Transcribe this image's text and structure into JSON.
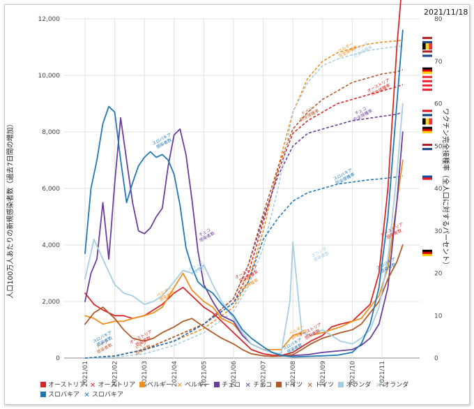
{
  "date_label": "2021/11/18",
  "chart_data": {
    "type": "line",
    "y_left": {
      "label": "人口100万人あたりの新規感染者数（過去7日間の増加）",
      "ticks": [
        "0",
        "2,000",
        "4,000",
        "6,000",
        "8,000",
        "10,000",
        "12,000"
      ],
      "ylim": [
        0,
        12000
      ]
    },
    "y_right": {
      "label": "ワクチン完全接種率（全人口に対するパーセント）",
      "ticks": [
        "0",
        "10",
        "20",
        "30",
        "40",
        "50",
        "60",
        "70",
        "80"
      ],
      "ylim": [
        0,
        80
      ]
    },
    "x_ticks": [
      "2021/01",
      "2021/02",
      "2021/03",
      "2021/04",
      "2021/05",
      "2021/06",
      "2021/07",
      "2021/08",
      "2021/09",
      "2021/10",
      "2021/11"
    ],
    "x_index_range": [
      0,
      10.9
    ],
    "grid": true,
    "legend_position": "bottom",
    "legend": [
      {
        "label": "オーストリア",
        "color": "#d62728",
        "marker": "square"
      },
      {
        "label": "オーストリア",
        "color": "#d62728",
        "marker": "cross"
      },
      {
        "label": "ベルギー",
        "color": "#f28e1c",
        "marker": "square"
      },
      {
        "label": "ベルギー",
        "color": "#f28e1c",
        "marker": "cross"
      },
      {
        "label": "チェコ",
        "color": "#6a3d9a",
        "marker": "square"
      },
      {
        "label": "チェコ",
        "color": "#6a3d9a",
        "marker": "cross"
      },
      {
        "label": "ドイツ",
        "color": "#b15928",
        "marker": "square"
      },
      {
        "label": "ドイツ",
        "color": "#b15928",
        "marker": "cross"
      },
      {
        "label": "オランダ",
        "color": "#a6cee3",
        "marker": "square"
      },
      {
        "label": "オランダ",
        "color": "#a6cee3",
        "marker": "cross"
      },
      {
        "label": "スロバキア",
        "color": "#1f78b4",
        "marker": "square"
      },
      {
        "label": "スロバキア",
        "color": "#1f78b4",
        "marker": "cross"
      }
    ],
    "cases_series": [
      {
        "name": "オーストリア",
        "color": "#d62728",
        "x": [
          0,
          0.3,
          0.6,
          1,
          1.3,
          1.6,
          2,
          2.3,
          2.6,
          3,
          3.3,
          3.6,
          4,
          4.3,
          4.6,
          5,
          5.3,
          5.6,
          6,
          6.3,
          6.6,
          7,
          7.3,
          7.6,
          8,
          8.3,
          8.6,
          9,
          9.3,
          9.6,
          9.9,
          10.2,
          10.5,
          10.7
        ],
        "y": [
          2300,
          1900,
          1700,
          1500,
          1500,
          1400,
          1500,
          1700,
          1900,
          2300,
          2500,
          2200,
          1800,
          1600,
          1300,
          900,
          600,
          300,
          150,
          100,
          90,
          200,
          400,
          600,
          800,
          1100,
          1200,
          1300,
          1600,
          1900,
          3000,
          6000,
          11000,
          13500
        ]
      },
      {
        "name": "ベルギー",
        "color": "#f28e1c",
        "x": [
          0,
          0.3,
          0.6,
          1,
          1.3,
          1.6,
          2,
          2.3,
          2.6,
          3,
          3.3,
          3.6,
          4,
          4.3,
          4.6,
          5,
          5.3,
          5.6,
          6,
          6.3,
          6.6,
          7,
          7.3,
          7.6,
          8,
          8.3,
          8.6,
          9,
          9.3,
          9.6,
          9.9,
          10.2,
          10.5,
          10.7
        ],
        "y": [
          1500,
          1400,
          1200,
          1300,
          1300,
          1400,
          1500,
          1600,
          1800,
          2500,
          3000,
          2400,
          2000,
          1800,
          1400,
          1200,
          800,
          500,
          300,
          300,
          300,
          800,
          900,
          800,
          900,
          1000,
          1100,
          1300,
          1400,
          1800,
          2200,
          3200,
          5500,
          7000
        ]
      },
      {
        "name": "チェコ",
        "color": "#6a3d9a",
        "x": [
          0,
          0.2,
          0.4,
          0.6,
          0.8,
          1,
          1.2,
          1.4,
          1.6,
          1.8,
          2,
          2.2,
          2.4,
          2.6,
          2.8,
          3,
          3.2,
          3.4,
          3.6,
          3.8,
          4,
          4.3,
          4.6,
          5,
          5.3,
          5.6,
          6,
          6.3,
          6.6,
          7,
          7.5,
          8,
          8.5,
          9,
          9.3,
          9.6,
          9.9,
          10.2,
          10.5,
          10.7
        ],
        "y": [
          2000,
          3000,
          3500,
          5500,
          3500,
          6200,
          8500,
          7000,
          5500,
          4500,
          4400,
          4600,
          5000,
          5300,
          6800,
          7900,
          8100,
          7200,
          5600,
          3800,
          2600,
          2000,
          1500,
          1300,
          800,
          500,
          300,
          200,
          100,
          90,
          120,
          200,
          250,
          300,
          450,
          700,
          1200,
          2500,
          5500,
          8000
        ]
      },
      {
        "name": "ドイツ",
        "color": "#b15928",
        "x": [
          0,
          0.3,
          0.6,
          1,
          1.3,
          1.6,
          2,
          2.3,
          2.6,
          3,
          3.3,
          3.6,
          4,
          4.3,
          4.6,
          5,
          5.3,
          5.6,
          6,
          6.3,
          6.6,
          7,
          7.3,
          7.6,
          8,
          8.3,
          8.6,
          9,
          9.3,
          9.6,
          9.9,
          10.2,
          10.5,
          10.7
        ],
        "y": [
          1200,
          1600,
          1800,
          1400,
          1000,
          700,
          600,
          700,
          900,
          1100,
          1300,
          1400,
          1100,
          900,
          700,
          500,
          300,
          150,
          80,
          60,
          70,
          120,
          300,
          500,
          700,
          800,
          900,
          1000,
          1200,
          1600,
          2000,
          2800,
          3400,
          4000
        ]
      },
      {
        "name": "オランダ",
        "color": "#a6cee3",
        "x": [
          0,
          0.3,
          0.6,
          1,
          1.3,
          1.6,
          2,
          2.3,
          2.6,
          3,
          3.3,
          3.6,
          4,
          4.3,
          4.6,
          5,
          5.3,
          5.6,
          6,
          6.3,
          6.6,
          6.9,
          7,
          7.1,
          7.3,
          7.6,
          8,
          8.3,
          8.6,
          9,
          9.3,
          9.6,
          9.9,
          10.2,
          10.5,
          10.7
        ],
        "y": [
          2800,
          4200,
          3500,
          2600,
          2300,
          2200,
          1900,
          2000,
          2200,
          2700,
          3100,
          3000,
          3300,
          2600,
          2000,
          1400,
          900,
          500,
          300,
          200,
          150,
          2000,
          4100,
          3000,
          900,
          800,
          1000,
          800,
          600,
          500,
          700,
          1000,
          1800,
          3500,
          6500,
          9000
        ]
      },
      {
        "name": "スロバキア",
        "color": "#1f78b4",
        "x": [
          0,
          0.2,
          0.4,
          0.6,
          0.8,
          1,
          1.2,
          1.4,
          1.6,
          1.8,
          2,
          2.2,
          2.4,
          2.6,
          2.8,
          3,
          3.2,
          3.4,
          3.6,
          3.8,
          4,
          4.3,
          4.6,
          5,
          5.3,
          5.6,
          6,
          6.3,
          6.6,
          7,
          7.5,
          8,
          8.5,
          9,
          9.3,
          9.6,
          9.9,
          10.2,
          10.5,
          10.7
        ],
        "y": [
          3700,
          6000,
          7000,
          8300,
          8900,
          8700,
          7000,
          5500,
          6200,
          6800,
          7100,
          7300,
          7100,
          7200,
          7000,
          6500,
          5400,
          3900,
          3200,
          2700,
          2500,
          2300,
          1900,
          1500,
          1000,
          700,
          400,
          200,
          90,
          40,
          60,
          80,
          100,
          200,
          500,
          1200,
          2500,
          5000,
          9000,
          11600
        ]
      }
    ],
    "vaccine_series": [
      {
        "name": "オーストリア",
        "color": "#d62728",
        "x": [
          0,
          1,
          2,
          3,
          4,
          5,
          5.5,
          6,
          6.5,
          7,
          7.5,
          8,
          8.5,
          9,
          9.5,
          10,
          10.5,
          10.7
        ],
        "y": [
          0,
          0.5,
          2,
          5,
          8,
          13,
          20,
          32,
          44,
          53,
          56,
          58,
          60,
          61,
          62,
          63,
          64,
          64.5
        ]
      },
      {
        "name": "ベルギー",
        "color": "#f28e1c",
        "x": [
          0,
          1,
          2,
          3,
          4,
          5,
          5.5,
          6,
          6.5,
          7,
          7.5,
          8,
          8.5,
          9,
          9.5,
          10,
          10.5,
          10.7
        ],
        "y": [
          0,
          0.5,
          2,
          4,
          7,
          12,
          18,
          30,
          45,
          58,
          66,
          70,
          72,
          73,
          74,
          74.5,
          74.8,
          75
        ]
      },
      {
        "name": "チェコ",
        "color": "#6a3d9a",
        "x": [
          0,
          1,
          2,
          3,
          4,
          5,
          5.5,
          6,
          6.5,
          7,
          7.5,
          8,
          8.5,
          9,
          9.5,
          10,
          10.5,
          10.7
        ],
        "y": [
          0,
          0.5,
          2,
          4,
          8,
          14,
          22,
          33,
          43,
          50,
          53,
          54,
          55,
          56,
          56.5,
          57,
          57.5,
          58
        ]
      },
      {
        "name": "ドイツ",
        "color": "#b15928",
        "x": [
          0,
          1,
          2,
          3,
          4,
          5,
          5.5,
          6,
          6.5,
          7,
          7.5,
          8,
          8.5,
          9,
          9.5,
          10,
          10.5,
          10.7
        ],
        "y": [
          0,
          0.5,
          2,
          5,
          8,
          14,
          22,
          34,
          45,
          54,
          58,
          61,
          63,
          65,
          66,
          67,
          67.5,
          68
        ]
      },
      {
        "name": "オランダ",
        "color": "#a6cee3",
        "x": [
          0,
          1,
          2,
          3,
          4,
          5,
          5.5,
          6,
          6.5,
          7,
          7.5,
          8,
          8.5,
          9,
          9.5,
          10,
          10.5,
          10.7
        ],
        "y": [
          0,
          0.2,
          1,
          3,
          6,
          11,
          17,
          26,
          40,
          58,
          65,
          69,
          70.5,
          71.5,
          72.5,
          73,
          73.5,
          73.5
        ]
      },
      {
        "name": "スロバキア",
        "color": "#1f78b4",
        "x": [
          0,
          1,
          2,
          3,
          4,
          5,
          5.5,
          6,
          6.5,
          7,
          7.5,
          8,
          8.5,
          9,
          9.5,
          10,
          10.5,
          10.7
        ],
        "y": [
          0,
          0.5,
          2,
          4,
          8,
          13,
          18,
          28,
          33,
          37,
          39,
          40,
          41,
          41.5,
          42,
          42.3,
          42.7,
          43
        ]
      }
    ],
    "annotations": [
      {
        "text": "スロバキア 感染者数",
        "series": "スロバキア",
        "type": "cases",
        "x": 2.6,
        "y": 7700
      },
      {
        "text": "チェコ 感染者数",
        "series": "チェコ",
        "type": "cases",
        "x": 4.05,
        "y": 4400
      },
      {
        "text": "オランダ 感染者数",
        "series": "オランダ",
        "type": "cases",
        "x": 3.75,
        "y": 3200
      },
      {
        "text": "ベルギー 感染者数",
        "series": "ベルギー",
        "type": "cases",
        "x": 2.7,
        "y": 2300
      },
      {
        "text": "スロバキア 感染者数",
        "series": "スロバキア",
        "type": "cases",
        "x": 0.6,
        "y": 700
      },
      {
        "text": "ドイツ 感染者数",
        "series": "ドイツ",
        "type": "cases",
        "x": 0.6,
        "y": 450
      },
      {
        "text": "オーストリア 感染者数",
        "series": "オーストリア",
        "type": "cases",
        "x": 1.9,
        "y": 700
      },
      {
        "text": "ドイツ 感染者数",
        "series": "ドイツ",
        "type": "cases",
        "x": 1.9,
        "y": 400
      },
      {
        "text": "ベルギー 感染者数",
        "series": "ベルギー",
        "type": "cases",
        "x": 7.15,
        "y": 950
      },
      {
        "text": "オーストリア 感染者数",
        "series": "オーストリア",
        "type": "cases",
        "x": 7.6,
        "y": 950
      },
      {
        "text": "スロバキア 感染者数",
        "series": "スロバキア",
        "type": "cases",
        "x": 7.0,
        "y": 450
      },
      {
        "text": "オランダ 感染者数",
        "series": "オランダ",
        "type": "cases",
        "x": 7.9,
        "y": 3700
      },
      {
        "text": "スロバキア 感染者数",
        "series": "スロバキア",
        "type": "cases",
        "x": 10.15,
        "y": 3300
      },
      {
        "text": "オーストリア 感染者数",
        "series": "オーストリア",
        "type": "cases",
        "x": 10.35,
        "y": 4500
      },
      {
        "text": "ベルギー 完全接種率",
        "series": "ベルギー",
        "type": "vaccine",
        "x": 8.8,
        "y": 73
      },
      {
        "text": "オランダ 完全接種率",
        "series": "オランダ",
        "type": "vaccine",
        "x": 9.3,
        "y": 73
      },
      {
        "text": "オーストリア 完全接種率",
        "series": "オーストリア",
        "type": "vaccine",
        "x": 9.9,
        "y": 64
      },
      {
        "text": "ドイツ 完全接種率",
        "series": "ドイツ",
        "type": "vaccine",
        "x": 7.5,
        "y": 58
      },
      {
        "text": "チェコ 完全接種率",
        "series": "チェコ",
        "type": "vaccine",
        "x": 9.3,
        "y": 58
      },
      {
        "text": "スロバキア 完全接種率",
        "series": "スロバキア",
        "type": "vaccine",
        "x": 8.7,
        "y": 43
      },
      {
        "text": "オーストリア 完全接種率",
        "series": "オーストリア",
        "type": "vaccine",
        "x": 5.45,
        "y": 20
      },
      {
        "text": "ベルギー 完全接種率",
        "series": "ベルギー",
        "type": "vaccine",
        "x": 5.45,
        "y": 18
      }
    ],
    "flags": [
      {
        "country": "オランダ",
        "stripes": [
          "#ae1c28",
          "#ffffff",
          "#21468b"
        ],
        "orientation": "horizontal",
        "y": 75
      },
      {
        "country": "ベルギー",
        "stripes": [
          "#000000",
          "#fdda24",
          "#ef3340"
        ],
        "orientation": "vertical",
        "y": 73.5
      },
      {
        "country": "オランダ",
        "stripes": [
          "#ae1c28",
          "#ffffff",
          "#21468b"
        ],
        "orientation": "horizontal",
        "y": 71.8
      },
      {
        "country": "ドイツ",
        "stripes": [
          "#000000",
          "#dd0000",
          "#ffce00"
        ],
        "orientation": "horizontal",
        "y": 67.8
      },
      {
        "country": "オーストリア",
        "stripes": [
          "#ed2939",
          "#ffffff",
          "#ed2939"
        ],
        "orientation": "horizontal",
        "y": 65.8
      },
      {
        "country": "オーストリア",
        "stripes": [
          "#ed2939",
          "#ffffff",
          "#ed2939"
        ],
        "orientation": "horizontal",
        "y": 63.8
      },
      {
        "country": "チェコ",
        "stripes": [
          "#d7141a",
          "#ffffff",
          "#11457e"
        ],
        "orientation": "horizontal",
        "y": 57.8
      },
      {
        "country": "ベルギー",
        "stripes": [
          "#000000",
          "#fdda24",
          "#ef3340"
        ],
        "orientation": "vertical",
        "y": 55.8
      },
      {
        "country": "ドイツ",
        "stripes": [
          "#000000",
          "#dd0000",
          "#ffce00"
        ],
        "orientation": "horizontal",
        "y": 53.8
      },
      {
        "country": "オランダ",
        "stripes": [
          "#ae1c28",
          "#ffffff",
          "#21468b"
        ],
        "orientation": "horizontal",
        "y": 49.8
      },
      {
        "country": "スロバキア",
        "stripes": [
          "#ffffff",
          "#0b4ea2",
          "#ee1c25"
        ],
        "orientation": "horizontal",
        "y": 42.8
      },
      {
        "country": "ドイツ",
        "stripes": [
          "#000000",
          "#dd0000",
          "#ffce00"
        ],
        "orientation": "horizontal",
        "y": 24.8
      }
    ]
  }
}
